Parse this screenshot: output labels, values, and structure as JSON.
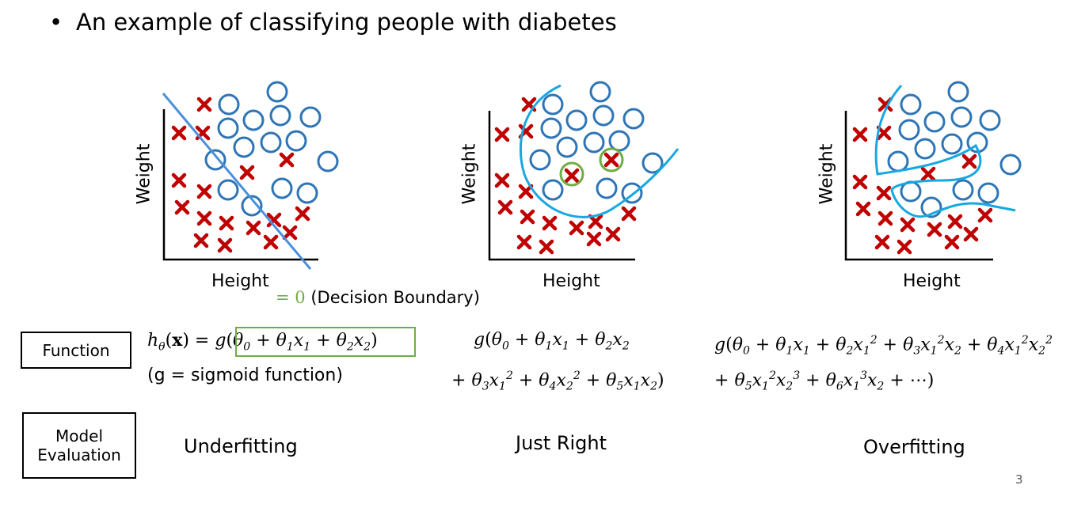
{
  "bullet": "An example of classifying people with diabetes",
  "axes": {
    "x_label": "Height",
    "y_label": "Weight"
  },
  "decision_boundary": {
    "eq": "= 0",
    "label": "(Decision Boundary)"
  },
  "function_box": "Function",
  "model_box": {
    "line1": "Model",
    "line2": "Evaluation"
  },
  "sigmoid_note": "(g = sigmoid function)",
  "evaluations": {
    "left": "Underfitting",
    "middle": "Just Right",
    "right": "Overfitting"
  },
  "page_number": "3",
  "colors": {
    "cross": "#C00000",
    "circle": "#2E75B6",
    "line": "#4A90D9",
    "curve": "#17A8E0",
    "highlight": "#70AD47"
  }
}
